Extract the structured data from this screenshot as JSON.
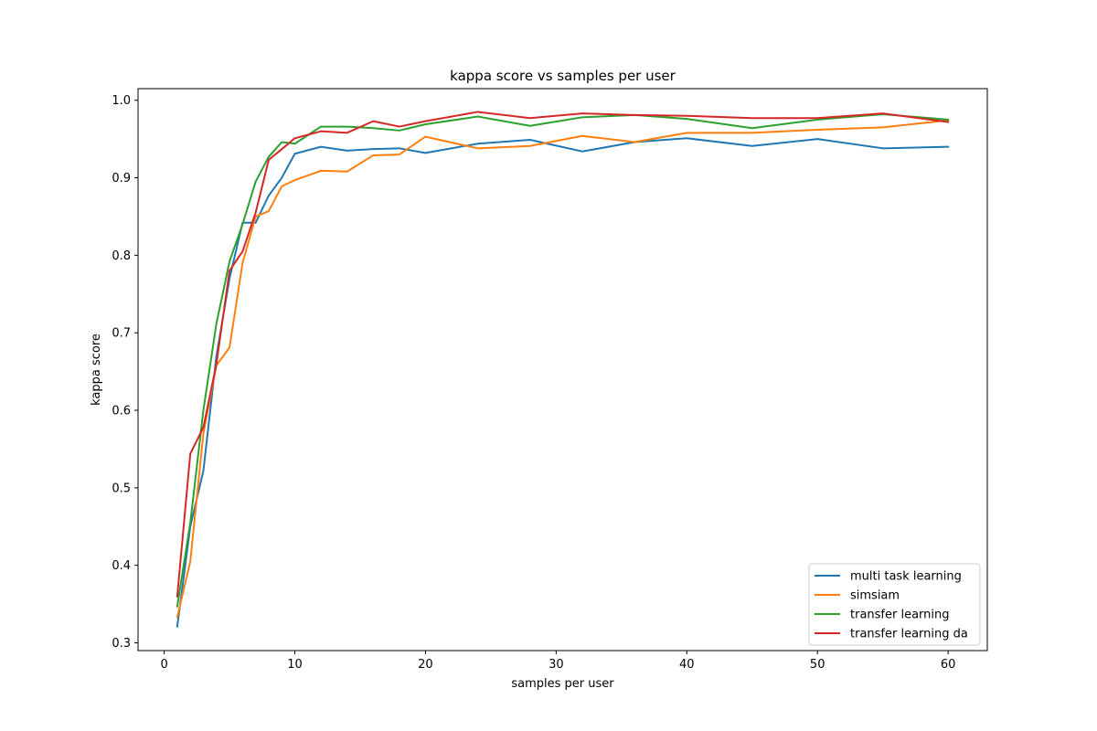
{
  "chart_data": {
    "type": "line",
    "title": "kappa score vs samples per user",
    "xlabel": "samples per user",
    "ylabel": "kappa score",
    "xlim": [
      -2,
      63
    ],
    "ylim": [
      0.29,
      1.015
    ],
    "xticks": [
      0,
      10,
      20,
      30,
      40,
      50,
      60
    ],
    "yticks": [
      0.3,
      0.4,
      0.5,
      0.6,
      0.7,
      0.8,
      0.9,
      1.0
    ],
    "ytick_labels": [
      "0.3",
      "0.4",
      "0.5",
      "0.6",
      "0.7",
      "0.8",
      "0.9",
      "1.0"
    ],
    "grid": false,
    "legend_position": "lower-right",
    "x": [
      1,
      2,
      3,
      4,
      5,
      6,
      7,
      8,
      9,
      10,
      12,
      14,
      16,
      18,
      20,
      24,
      28,
      32,
      36,
      40,
      45,
      50,
      55,
      60
    ],
    "series": [
      {
        "name": "multi task learning",
        "color": "#1f77b4",
        "values": [
          0.321,
          0.45,
          0.522,
          0.67,
          0.77,
          0.842,
          0.842,
          0.877,
          0.9,
          0.931,
          0.94,
          0.935,
          0.937,
          0.938,
          0.932,
          0.944,
          0.949,
          0.934,
          0.946,
          0.951,
          0.941,
          0.95,
          0.938,
          0.94
        ]
      },
      {
        "name": "simsiam",
        "color": "#ff7f0e",
        "values": [
          0.333,
          0.405,
          0.57,
          0.658,
          0.681,
          0.79,
          0.85,
          0.857,
          0.889,
          0.897,
          0.909,
          0.908,
          0.929,
          0.93,
          0.953,
          0.938,
          0.941,
          0.954,
          0.946,
          0.958,
          0.958,
          0.962,
          0.965,
          0.974
        ]
      },
      {
        "name": "transfer learning",
        "color": "#2ca02c",
        "values": [
          0.347,
          0.455,
          0.6,
          0.712,
          0.792,
          0.84,
          0.895,
          0.927,
          0.946,
          0.944,
          0.966,
          0.966,
          0.964,
          0.961,
          0.969,
          0.979,
          0.967,
          0.978,
          0.981,
          0.976,
          0.964,
          0.975,
          0.982,
          0.975
        ]
      },
      {
        "name": "transfer learning da",
        "color": "#d62728",
        "values": [
          0.36,
          0.544,
          0.578,
          0.66,
          0.78,
          0.805,
          0.855,
          0.923,
          0.937,
          0.951,
          0.96,
          0.958,
          0.973,
          0.966,
          0.973,
          0.985,
          0.977,
          0.983,
          0.981,
          0.98,
          0.977,
          0.977,
          0.983,
          0.972
        ]
      }
    ]
  }
}
